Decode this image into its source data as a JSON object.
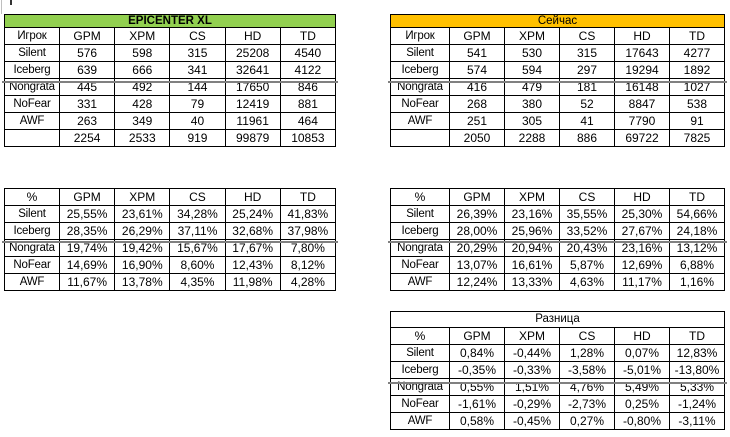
{
  "colors": {
    "epicenter_header_fill": "#92D050",
    "now_header_fill": "#FFC000",
    "diff_header_fill": "#FFFFFF",
    "pane_split_line": "#808080",
    "cell_border": "#000000"
  },
  "tables": {
    "epicenter": {
      "title": "EPICENTER XL",
      "columns": [
        "Игрок",
        "GPM",
        "XPM",
        "CS",
        "HD",
        "TD"
      ],
      "rows": [
        {
          "label": "Silent",
          "values": [
            "576",
            "598",
            "315",
            "25208",
            "4540"
          ]
        },
        {
          "label": "Iceberg",
          "values": [
            "639",
            "666",
            "341",
            "32641",
            "4122"
          ]
        },
        {
          "label": "Nongrata",
          "values": [
            "445",
            "492",
            "144",
            "17650",
            "846"
          ]
        },
        {
          "label": "NoFear",
          "values": [
            "331",
            "428",
            "79",
            "12419",
            "881"
          ]
        },
        {
          "label": "AWF",
          "values": [
            "263",
            "349",
            "40",
            "11961",
            "464"
          ]
        }
      ],
      "total": [
        "2254",
        "2533",
        "919",
        "99879",
        "10853"
      ]
    },
    "now": {
      "title": "Сейчас",
      "columns": [
        "Игрок",
        "GPM",
        "XPM",
        "CS",
        "HD",
        "TD"
      ],
      "rows": [
        {
          "label": "Silent",
          "values": [
            "541",
            "530",
            "315",
            "17643",
            "4277"
          ]
        },
        {
          "label": "Iceberg",
          "values": [
            "574",
            "594",
            "297",
            "19294",
            "1892"
          ]
        },
        {
          "label": "Nongrata",
          "values": [
            "416",
            "479",
            "181",
            "16148",
            "1027"
          ]
        },
        {
          "label": "NoFear",
          "values": [
            "268",
            "380",
            "52",
            "8847",
            "538"
          ]
        },
        {
          "label": "AWF",
          "values": [
            "251",
            "305",
            "41",
            "7790",
            "91"
          ]
        }
      ],
      "total": [
        "2050",
        "2288",
        "886",
        "69722",
        "7825"
      ]
    },
    "pct_epicenter": {
      "columns": [
        "%",
        "GPM",
        "XPM",
        "CS",
        "HD",
        "TD"
      ],
      "rows": [
        {
          "label": "Silent",
          "values": [
            "25,55%",
            "23,61%",
            "34,28%",
            "25,24%",
            "41,83%"
          ]
        },
        {
          "label": "Iceberg",
          "values": [
            "28,35%",
            "26,29%",
            "37,11%",
            "32,68%",
            "37,98%"
          ]
        },
        {
          "label": "Nongrata",
          "values": [
            "19,74%",
            "19,42%",
            "15,67%",
            "17,67%",
            "7,80%"
          ]
        },
        {
          "label": "NoFear",
          "values": [
            "14,69%",
            "16,90%",
            "8,60%",
            "12,43%",
            "8,12%"
          ]
        },
        {
          "label": "AWF",
          "values": [
            "11,67%",
            "13,78%",
            "4,35%",
            "11,98%",
            "4,28%"
          ]
        }
      ]
    },
    "pct_now": {
      "columns": [
        "%",
        "GPM",
        "XPM",
        "CS",
        "HD",
        "TD"
      ],
      "rows": [
        {
          "label": "Silent",
          "values": [
            "26,39%",
            "23,16%",
            "35,55%",
            "25,30%",
            "54,66%"
          ]
        },
        {
          "label": "Iceberg",
          "values": [
            "28,00%",
            "25,96%",
            "33,52%",
            "27,67%",
            "24,18%"
          ]
        },
        {
          "label": "Nongrata",
          "values": [
            "20,29%",
            "20,94%",
            "20,43%",
            "23,16%",
            "13,12%"
          ]
        },
        {
          "label": "NoFear",
          "values": [
            "13,07%",
            "16,61%",
            "5,87%",
            "12,69%",
            "6,88%"
          ]
        },
        {
          "label": "AWF",
          "values": [
            "12,24%",
            "13,33%",
            "4,63%",
            "11,17%",
            "1,16%"
          ]
        }
      ]
    },
    "diff": {
      "title": "Разница",
      "columns": [
        "%",
        "GPM",
        "XPM",
        "CS",
        "HD",
        "TD"
      ],
      "rows": [
        {
          "label": "Silent",
          "values": [
            "0,84%",
            "-0,44%",
            "1,28%",
            "0,07%",
            "12,83%"
          ]
        },
        {
          "label": "Iceberg",
          "values": [
            "-0,35%",
            "-0,33%",
            "-3,58%",
            "-5,01%",
            "-13,80%"
          ]
        },
        {
          "label": "Nongrata",
          "values": [
            "0,55%",
            "1,51%",
            "4,76%",
            "5,49%",
            "5,33%"
          ]
        },
        {
          "label": "NoFear",
          "values": [
            "-1,61%",
            "-0,29%",
            "-2,73%",
            "0,25%",
            "-1,24%"
          ]
        },
        {
          "label": "AWF",
          "values": [
            "0,58%",
            "-0,45%",
            "0,27%",
            "-0,80%",
            "-3,11%"
          ]
        }
      ]
    }
  }
}
